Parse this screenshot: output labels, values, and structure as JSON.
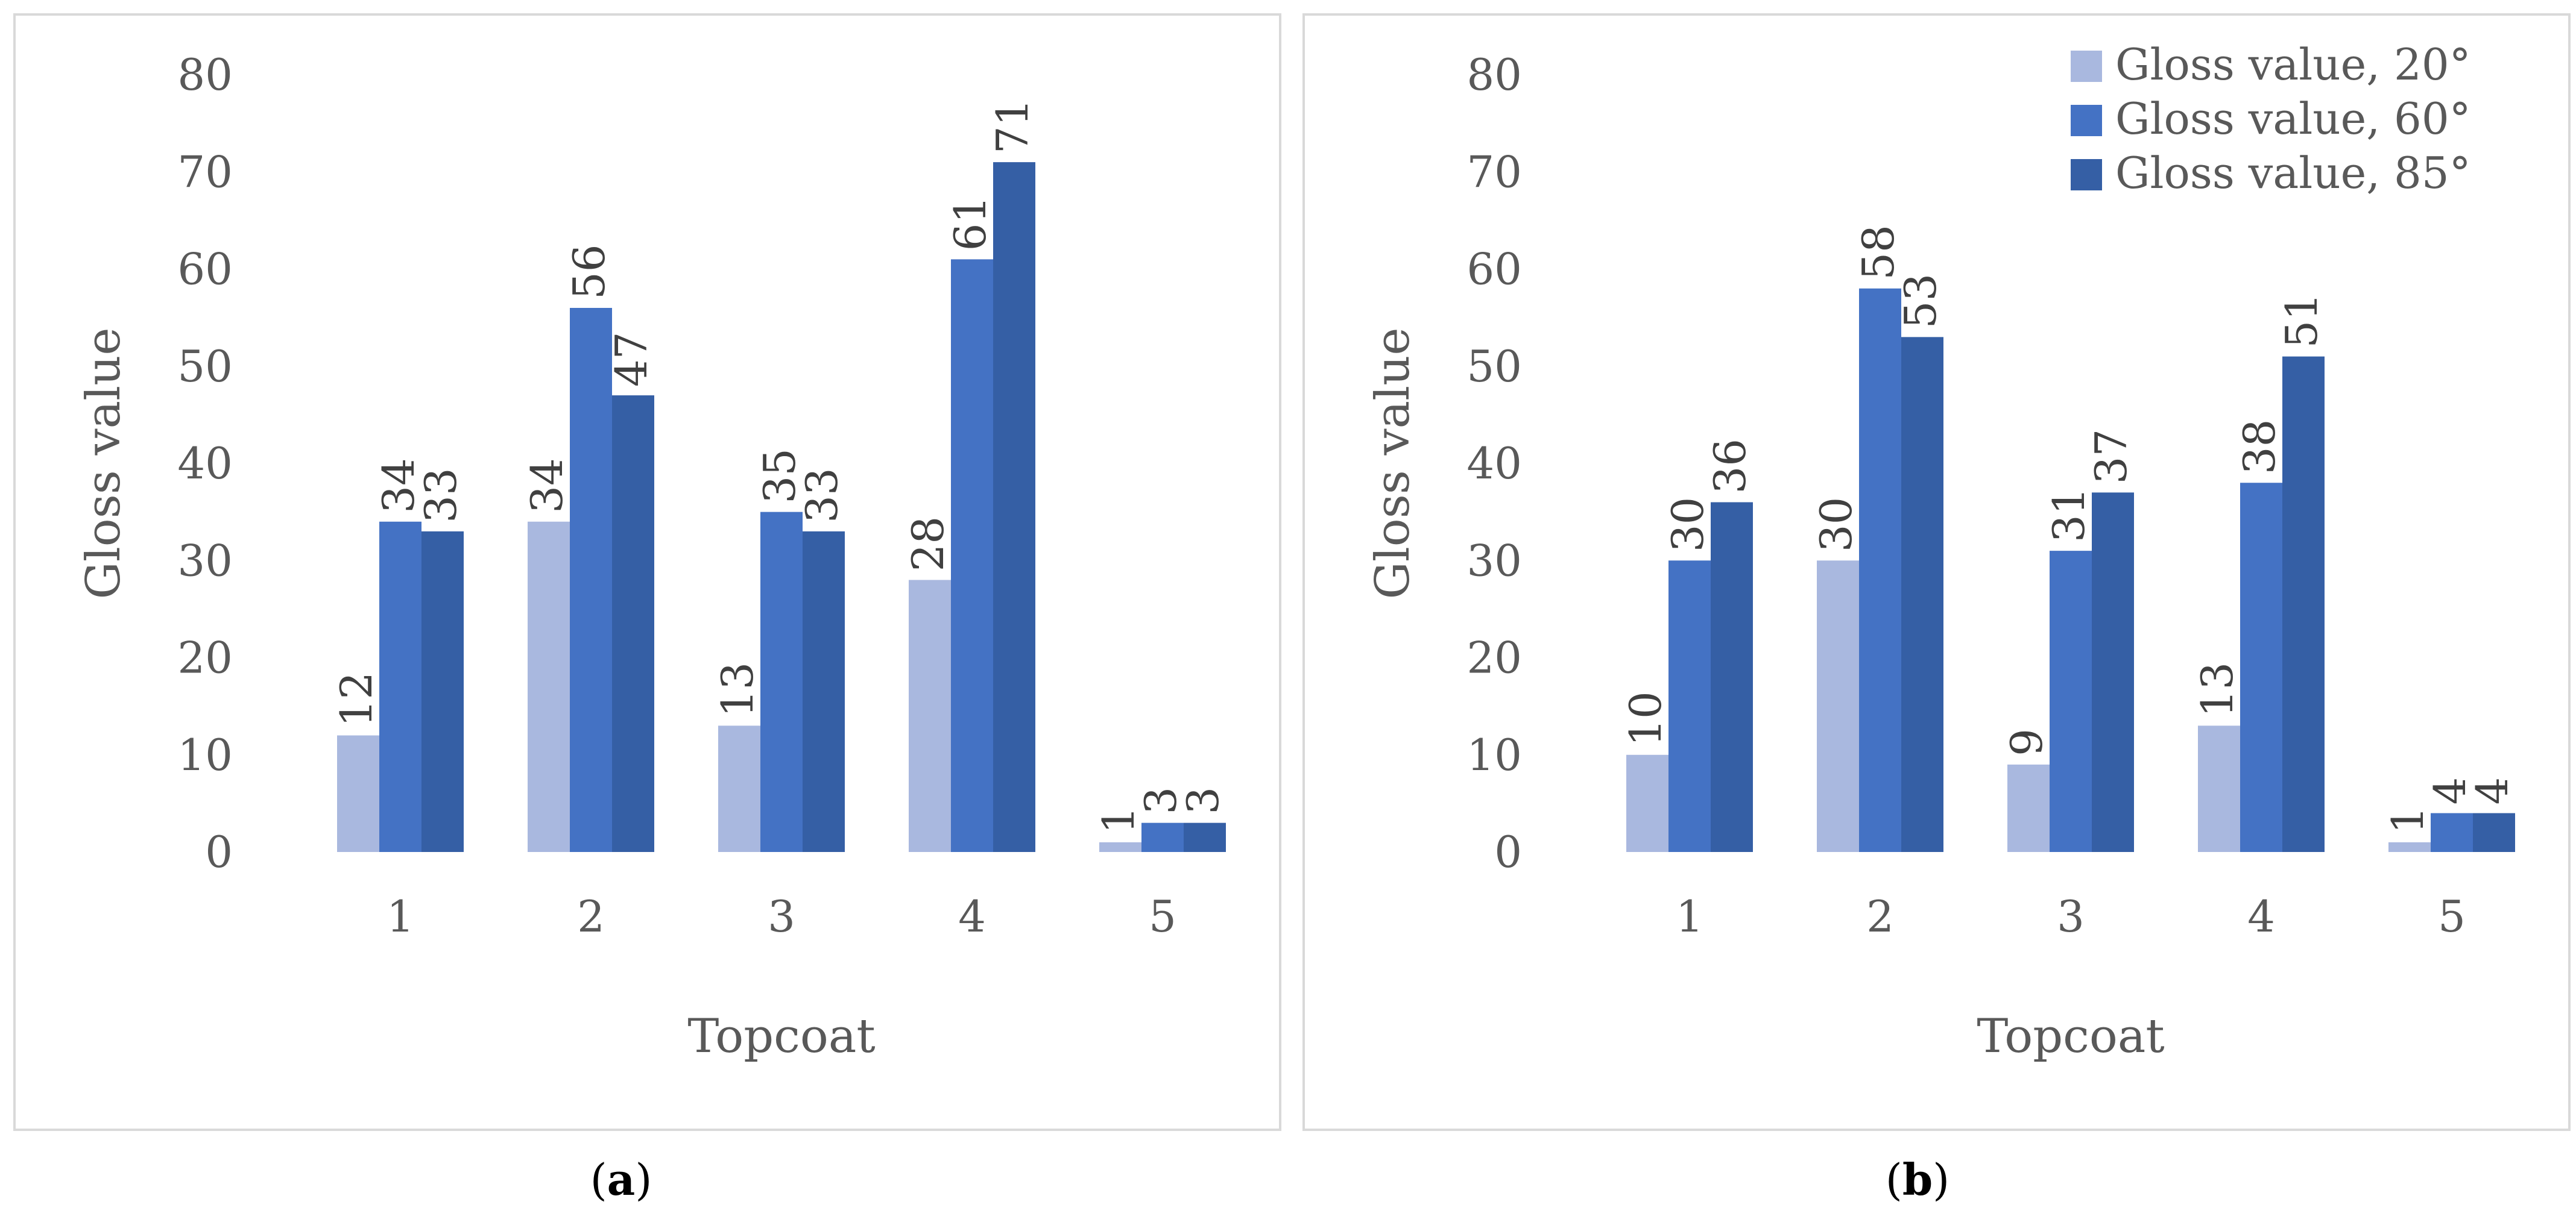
{
  "chart_data": [
    {
      "panel": "a",
      "type": "bar",
      "categories": [
        "1",
        "2",
        "3",
        "4",
        "5"
      ],
      "series": [
        {
          "name": "Gloss value, 20°",
          "values": [
            12,
            34,
            13,
            28,
            1
          ],
          "labels": [
            "12",
            "34",
            "13",
            "28",
            "1"
          ],
          "color": "#A9B8DF"
        },
        {
          "name": "Gloss value, 60°",
          "values": [
            34,
            56,
            35,
            61,
            3
          ],
          "labels": [
            "34",
            "56",
            "35",
            "61",
            "3"
          ],
          "color": "#4472C4"
        },
        {
          "name": "Gloss value, 85°",
          "values": [
            33,
            47,
            33,
            71,
            3
          ],
          "labels": [
            "33",
            "47",
            "33",
            "71",
            "3"
          ],
          "color": "#355FA5"
        }
      ],
      "yticks": [
        "0",
        "10",
        "20",
        "30",
        "40",
        "50",
        "60",
        "70",
        "80"
      ],
      "ylim": [
        0,
        80
      ],
      "xlabel": "Topcoat",
      "ylabel": "Gloss value",
      "legend": false
    },
    {
      "panel": "b",
      "type": "bar",
      "categories": [
        "1",
        "2",
        "3",
        "4",
        "5"
      ],
      "series": [
        {
          "name": "Gloss value, 20°",
          "values": [
            10,
            30,
            9,
            13,
            1
          ],
          "labels": [
            "10",
            "30",
            "9",
            "13",
            "1"
          ],
          "color": "#A9B8DF"
        },
        {
          "name": "Gloss value, 60°",
          "values": [
            30,
            58,
            31,
            38,
            4
          ],
          "labels": [
            "30",
            "58",
            "31",
            "38",
            "4"
          ],
          "color": "#4472C4"
        },
        {
          "name": "Gloss value, 85°",
          "values": [
            36,
            53,
            37,
            51,
            4
          ],
          "labels": [
            "36",
            "53",
            "37",
            "51",
            "4"
          ],
          "color": "#355FA5"
        }
      ],
      "yticks": [
        "0",
        "10",
        "20",
        "30",
        "40",
        "50",
        "60",
        "70",
        "80"
      ],
      "ylim": [
        0,
        80
      ],
      "xlabel": "Topcoat",
      "ylabel": "Gloss value",
      "legend": true,
      "legend_position": "top-right"
    }
  ],
  "captions": {
    "a": "a",
    "b": "b"
  }
}
